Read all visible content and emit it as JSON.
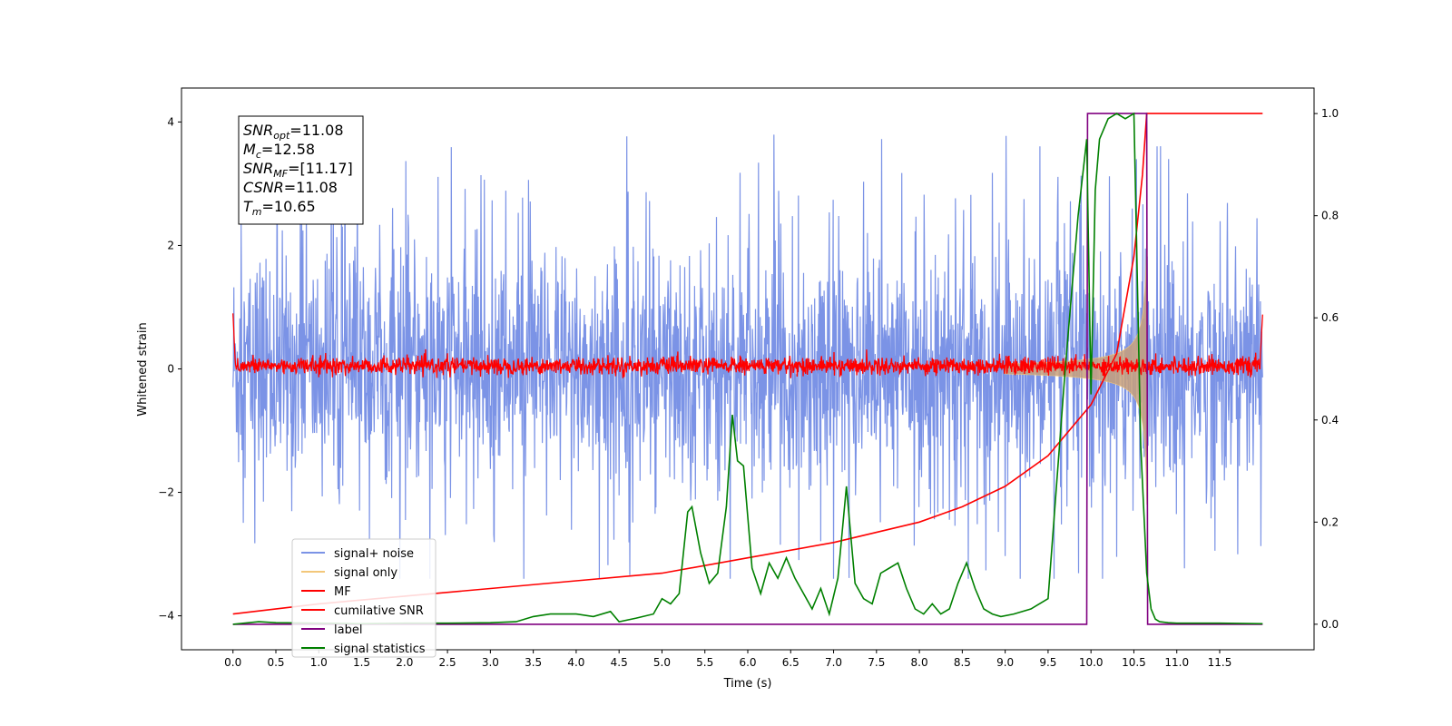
{
  "chart_data": {
    "type": "line",
    "xlabel": "Time (s)",
    "ylabel": "Whitened strain",
    "xlim": [
      -0.6,
      12.6
    ],
    "ylim": [
      -4.55,
      4.55
    ],
    "y2lim": [
      -0.05,
      1.05
    ],
    "x_ticks": [
      "0.0",
      "0.5",
      "1.0",
      "1.5",
      "2.0",
      "2.5",
      "3.0",
      "3.5",
      "4.0",
      "4.5",
      "5.0",
      "5.5",
      "6.0",
      "6.5",
      "7.0",
      "7.5",
      "8.0",
      "8.5",
      "9.0",
      "9.5",
      "10.0",
      "10.5",
      "11.0",
      "11.5"
    ],
    "y_ticks": [
      "4",
      "2",
      "0",
      "−2",
      "−4"
    ],
    "y2_ticks": [
      "1.0",
      "0.8",
      "0.6",
      "0.4",
      "0.2",
      "0.0"
    ],
    "grid": false,
    "legend_position": "lower-left",
    "stats_box": [
      {
        "base": "SNR",
        "sub": "opt",
        "value": "=11.08"
      },
      {
        "base": "M",
        "sub": "c",
        "value": "=12.58"
      },
      {
        "base": "SNR",
        "sub": "MF",
        "value": "=[11.17]"
      },
      {
        "base": "CSNR",
        "sub": "",
        "value": "=11.08"
      },
      {
        "base": "T",
        "sub": "m",
        "value": "=10.65"
      }
    ],
    "series": [
      {
        "name": "signal+ noise",
        "color": "#7b93e6",
        "axis": "left",
        "description": "noisy whitened strain, roughly within -3 to 4",
        "x_range": [
          0,
          12
        ]
      },
      {
        "name": "signal only",
        "color": "#f3c77a",
        "axis": "left",
        "description": "chirp signal growing in amplitude up to merger",
        "x_range": [
          9.0,
          10.65
        ]
      },
      {
        "name": "MF",
        "color": "#ff0000",
        "axis": "left",
        "description": "matched filter output near zero",
        "x_range": [
          0,
          12
        ]
      },
      {
        "name": "cumilative SNR",
        "color": "#ff0000",
        "axis": "right",
        "x": [
          0.0,
          1.0,
          2.0,
          3.0,
          4.0,
          5.0,
          6.0,
          7.0,
          8.0,
          8.5,
          9.0,
          9.5,
          10.0,
          10.3,
          10.5,
          10.6,
          10.65,
          11.0,
          11.5,
          12.0
        ],
        "y": [
          0.02,
          0.04,
          0.055,
          0.07,
          0.085,
          0.1,
          0.13,
          0.16,
          0.2,
          0.23,
          0.27,
          0.33,
          0.43,
          0.53,
          0.72,
          0.88,
          1.0,
          1.0,
          1.0,
          1.0
        ]
      },
      {
        "name": "label",
        "color": "#800080",
        "axis": "right",
        "x": [
          0.0,
          9.95,
          9.96,
          10.65,
          10.66,
          12.0
        ],
        "y": [
          0.0,
          0.0,
          1.0,
          1.0,
          0.0,
          0.0
        ]
      },
      {
        "name": "signal statistics",
        "color": "#008000",
        "axis": "right",
        "x": [
          0.0,
          0.3,
          0.5,
          1.0,
          1.5,
          2.0,
          2.5,
          3.0,
          3.3,
          3.5,
          3.7,
          4.0,
          4.2,
          4.4,
          4.5,
          4.7,
          4.9,
          5.0,
          5.1,
          5.2,
          5.3,
          5.35,
          5.45,
          5.55,
          5.65,
          5.75,
          5.82,
          5.88,
          5.95,
          6.05,
          6.15,
          6.25,
          6.35,
          6.45,
          6.55,
          6.65,
          6.75,
          6.85,
          6.95,
          7.05,
          7.15,
          7.25,
          7.35,
          7.45,
          7.55,
          7.65,
          7.75,
          7.85,
          7.95,
          8.05,
          8.15,
          8.25,
          8.35,
          8.45,
          8.55,
          8.65,
          8.75,
          8.85,
          8.95,
          9.1,
          9.3,
          9.5,
          9.7,
          9.85,
          9.95,
          10.0,
          10.05,
          10.1,
          10.2,
          10.3,
          10.4,
          10.5,
          10.58,
          10.65,
          10.7,
          10.75,
          10.8,
          10.9,
          11.0,
          11.5,
          12.0
        ],
        "y": [
          0.0,
          0.005,
          0.003,
          0.002,
          0.001,
          0.002,
          0.002,
          0.003,
          0.005,
          0.015,
          0.02,
          0.02,
          0.015,
          0.025,
          0.005,
          0.012,
          0.02,
          0.05,
          0.04,
          0.06,
          0.22,
          0.23,
          0.14,
          0.08,
          0.1,
          0.23,
          0.41,
          0.32,
          0.31,
          0.11,
          0.06,
          0.12,
          0.09,
          0.13,
          0.09,
          0.06,
          0.03,
          0.07,
          0.02,
          0.09,
          0.27,
          0.08,
          0.05,
          0.04,
          0.1,
          0.11,
          0.12,
          0.07,
          0.03,
          0.02,
          0.04,
          0.02,
          0.03,
          0.08,
          0.12,
          0.07,
          0.03,
          0.02,
          0.015,
          0.02,
          0.03,
          0.05,
          0.5,
          0.8,
          0.95,
          0.45,
          0.85,
          0.95,
          0.99,
          1.0,
          0.99,
          1.0,
          0.35,
          0.1,
          0.03,
          0.01,
          0.005,
          0.003,
          0.002,
          0.002,
          0.001
        ]
      }
    ]
  }
}
